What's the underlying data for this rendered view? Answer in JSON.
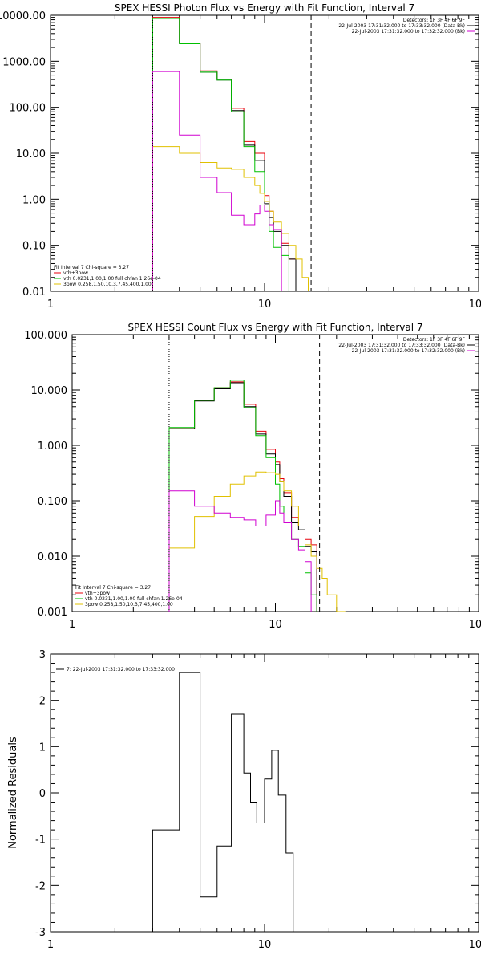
{
  "chart_data": [
    {
      "type": "line",
      "title": "SPEX HESSI Photon Flux vs Energy with Fit Function, Interval 7",
      "xlabel": "",
      "ylabel": "",
      "xscale": "log",
      "yscale": "log",
      "xlim": [
        1,
        100
      ],
      "ylim": [
        0.01,
        10000
      ],
      "x_ticks": [
        1,
        10,
        100
      ],
      "x_tick_labels": [
        "1",
        "10",
        "100"
      ],
      "y_ticks": [
        0.01,
        0.1,
        1,
        10,
        100,
        1000,
        10000
      ],
      "y_tick_labels": [
        "0.01",
        "0.10",
        "1.00",
        "10.00",
        "100.00",
        "1000.00",
        "10000.00"
      ],
      "vlines": [
        {
          "x": 3.0,
          "style": "dotted",
          "color": "#000000"
        },
        {
          "x": 16.5,
          "style": "dashed",
          "color": "#000000"
        }
      ],
      "bin_edges": [
        3,
        3.5,
        4,
        4.5,
        5,
        5.5,
        6,
        6.5,
        7,
        7.5,
        8,
        8.5,
        9,
        9.5,
        10,
        10.5,
        11,
        12,
        13,
        14,
        15,
        16,
        17,
        18,
        20,
        22
      ],
      "series": [
        {
          "name": "vth+3pow",
          "color": "#e8000b",
          "values": [
            9000,
            9000,
            2500,
            2500,
            620,
            620,
            410,
            410,
            95,
            95,
            18,
            18,
            10,
            10,
            1.2,
            0.55,
            0.22,
            0.11,
            0.05,
            null,
            null,
            null,
            null,
            null,
            null
          ]
        },
        {
          "name": "",
          "color": "#000000",
          "values": [
            8500,
            8500,
            2400,
            2400,
            580,
            580,
            390,
            390,
            85,
            85,
            15,
            15,
            7,
            7,
            0.8,
            0.4,
            0.2,
            0.1,
            0.05,
            null,
            null,
            null,
            null,
            null,
            null
          ]
        },
        {
          "name": "vth 0.0231,1.00,1.00  full chfan 1.26e-04",
          "color": "#00c000",
          "values": [
            8500,
            8500,
            2400,
            2400,
            580,
            580,
            390,
            390,
            80,
            80,
            14,
            14,
            4,
            4,
            0.9,
            0.2,
            0.09,
            0.06,
            null,
            null,
            null,
            null,
            null,
            null,
            null
          ]
        },
        {
          "name": "3pow 0.258,1.50,10.3,7.45,400,1.00",
          "color": "#e0c000",
          "values": [
            14,
            14,
            10,
            10,
            6.3,
            6.3,
            4.8,
            4.8,
            4.5,
            4.5,
            3.0,
            3.0,
            2.0,
            1.35,
            0.9,
            0.55,
            0.32,
            0.18,
            0.1,
            0.05,
            0.02,
            null,
            null,
            null,
            null
          ]
        },
        {
          "name": "",
          "color": "#d000d0",
          "values": [
            600,
            600,
            25,
            25,
            3.0,
            3.0,
            1.4,
            1.4,
            0.45,
            0.45,
            0.28,
            0.28,
            0.48,
            0.75,
            0.55,
            0.28,
            0.22,
            null,
            null,
            null,
            null,
            null,
            null,
            null,
            null
          ]
        }
      ],
      "legend_top_right": [
        "Detectors: 1F 3F 4F 6F 9F",
        "22-Jul-2003 17:31:32.000 to 17:33:32.000 (Data-Bk)",
        "22-Jul-2003 17:31:32.000 to 17:32:32.000 (Bk)"
      ],
      "legend_top_right_colors": [
        "",
        "#000000",
        "#d000d0"
      ],
      "legend_bottom_left_header": "Fit Interval  7   Chi-square = 3.27",
      "legend_bottom_left": [
        {
          "text": "vth+3pow",
          "color": "#e8000b"
        },
        {
          "text": "vth 0.0231,1.00,1.00  full chfan 1.26e-04",
          "color": "#00c000"
        },
        {
          "text": "3pow 0.258,1.50,10.3,7.45,400,1.00",
          "color": "#e0c000"
        }
      ]
    },
    {
      "type": "line",
      "title": "SPEX HESSI Count Flux vs Energy with Fit Function, Interval 7",
      "xlabel": "",
      "ylabel": "",
      "xscale": "log",
      "yscale": "log",
      "xlim": [
        1,
        100
      ],
      "ylim": [
        0.001,
        100
      ],
      "x_ticks": [
        1,
        10,
        100
      ],
      "x_tick_labels": [
        "1",
        "10",
        "100"
      ],
      "y_ticks": [
        0.001,
        0.01,
        0.1,
        1,
        10,
        100
      ],
      "y_tick_labels": [
        "0.001",
        "0.010",
        "0.100",
        "1.000",
        "10.000",
        "100.000"
      ],
      "vlines": [
        {
          "x": 3.0,
          "style": "dotted",
          "color": "#000000"
        },
        {
          "x": 16.5,
          "style": "dashed",
          "color": "#000000"
        }
      ],
      "bin_edges": [
        3,
        3.5,
        4,
        4.5,
        5,
        5.5,
        6,
        6.5,
        7,
        7.5,
        8,
        8.5,
        9,
        9.5,
        10,
        10.5,
        11,
        12,
        13,
        14,
        15,
        16,
        17,
        18,
        20,
        22
      ],
      "series": [
        {
          "name": "vth+3pow",
          "color": "#e8000b",
          "values": [
            2.0,
            2.0,
            6.5,
            6.5,
            11,
            11,
            14,
            14,
            5.5,
            5.5,
            1.8,
            1.8,
            0.85,
            0.85,
            0.5,
            0.25,
            0.14,
            0.05,
            0.035,
            0.02,
            0.016,
            null,
            null,
            null,
            null
          ]
        },
        {
          "name": "",
          "color": "#000000",
          "values": [
            2.0,
            2.0,
            6.3,
            6.3,
            10.5,
            10.5,
            13.5,
            13.5,
            5.0,
            5.0,
            1.6,
            1.6,
            0.7,
            0.7,
            0.45,
            0.22,
            0.12,
            0.04,
            0.03,
            0.015,
            0.012,
            null,
            null,
            null,
            null
          ]
        },
        {
          "name": "vth 0.0231,1.00,1.00  full chfan 1.26e-04",
          "color": "#00c000",
          "values": [
            2.1,
            2.1,
            6.5,
            6.5,
            11,
            11,
            15,
            15,
            4.8,
            4.8,
            1.5,
            1.5,
            0.6,
            0.6,
            0.2,
            0.08,
            0.04,
            0.02,
            0.015,
            0.005,
            0.002,
            null,
            null,
            null,
            null
          ]
        },
        {
          "name": "3pow 0.258,1.50,10.3,7.45,400,1.00",
          "color": "#e0c000",
          "values": [
            0.014,
            0.014,
            0.052,
            0.052,
            0.12,
            0.12,
            0.2,
            0.2,
            0.28,
            0.28,
            0.33,
            0.33,
            0.32,
            0.32,
            0.3,
            0.22,
            0.15,
            0.08,
            0.035,
            0.016,
            0.01,
            0.006,
            0.004,
            0.002,
            0.001
          ]
        },
        {
          "name": "",
          "color": "#d000d0",
          "values": [
            0.15,
            0.15,
            0.08,
            0.08,
            0.06,
            0.06,
            0.05,
            0.05,
            0.045,
            0.045,
            0.035,
            0.035,
            0.055,
            0.055,
            0.1,
            0.06,
            0.04,
            0.02,
            0.013,
            0.008,
            null,
            null,
            null,
            null,
            null
          ]
        }
      ],
      "legend_top_right": [
        "Detectors: 1F 3F 4F 6F 9F",
        "22-Jul-2003 17:31:32.000 to 17:33:32.000 (Data-Bk)",
        "22-Jul-2003 17:31:32.000 to 17:32:32.000 (Bk)"
      ],
      "legend_top_right_colors": [
        "",
        "#000000",
        "#d000d0"
      ],
      "legend_bottom_left_header": "Fit Interval  7   Chi-square = 3.27",
      "legend_bottom_left": [
        {
          "text": "vth+3pow",
          "color": "#e8000b"
        },
        {
          "text": "vth 0.0231,1.00,1.00  full chfan 1.26e-04",
          "color": "#00c000"
        },
        {
          "text": "3pow 0.258,1.50,10.3,7.45,400,1.00",
          "color": "#e0c000"
        }
      ]
    },
    {
      "type": "line",
      "title": "",
      "xlabel": "",
      "ylabel": "Normalized Residuals",
      "xscale": "log",
      "yscale": "linear",
      "xlim": [
        1,
        100
      ],
      "ylim": [
        -3,
        3
      ],
      "x_ticks": [
        1,
        10,
        100
      ],
      "x_tick_labels": [
        "1",
        "10",
        "100"
      ],
      "y_ticks": [
        -3,
        -2,
        -1,
        0,
        1,
        2,
        3
      ],
      "y_tick_labels": [
        "-3",
        "-2",
        "-1",
        "0",
        "1",
        "2",
        "3"
      ],
      "vlines": [],
      "bin_edges": [
        3.0,
        3.5,
        4.0,
        5.0,
        6.0,
        7.0,
        8.0,
        8.6,
        9.2,
        10.0,
        10.8,
        11.6,
        12.6,
        13.6,
        14.8,
        16.2,
        17.5
      ],
      "series": [
        {
          "name": "7: 22-Jul-2003 17:31:32.000 to 17:33:32.000",
          "color": "#000000",
          "values": [
            -0.8,
            -0.8,
            2.6,
            -2.25,
            -1.15,
            1.7,
            0.43,
            -0.2,
            -0.65,
            0.3,
            0.92,
            -0.05,
            -1.3,
            null,
            null,
            null
          ]
        }
      ],
      "legend_top_left": [
        {
          "text": "7: 22-Jul-2003 17:31:32.000 to 17:33:32.000",
          "color": "#000000"
        }
      ]
    }
  ]
}
